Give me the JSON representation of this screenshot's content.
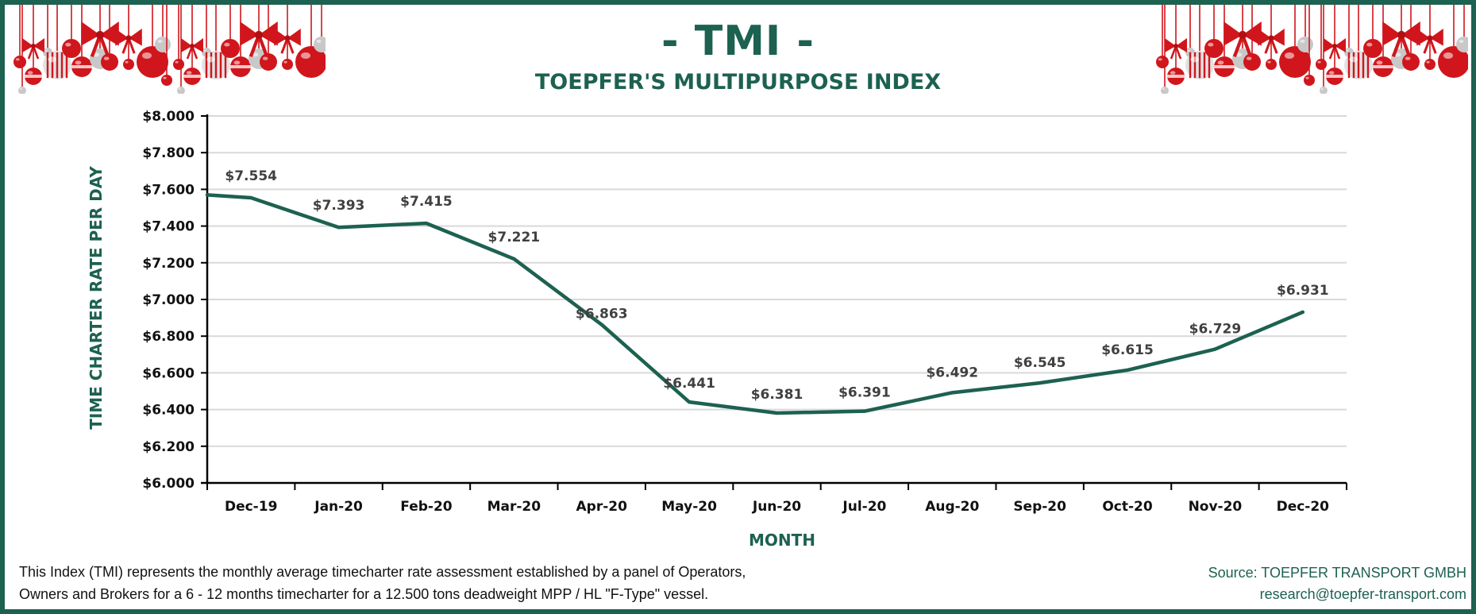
{
  "header": {
    "title": "- TMI -",
    "subtitle": "TOEPFER'S MULTIPURPOSE INDEX"
  },
  "decoration": {
    "left": "christmas-ornaments",
    "right": "christmas-ornaments",
    "colors": {
      "red": "#d0161c",
      "silver": "#c8c8c8",
      "frame": "#1d6150"
    }
  },
  "footer": {
    "note_line1": "This Index (TMI) represents the monthly average timecharter rate assessment established by a panel of Operators,",
    "note_line2": "Owners and Brokers for a 6 - 12 months timecharter for a 12.500 tons deadweight MPP / HL \"F-Type\" vessel.",
    "source_line1": "Source: TOEPFER TRANSPORT GMBH",
    "source_line2": "research@toepfer-transport.com"
  },
  "chart_data": {
    "type": "line",
    "title": "- TMI -",
    "subtitle": "TOEPFER'S MULTIPURPOSE INDEX",
    "xlabel": "MONTH",
    "ylabel": "TIME CHARTER RATE PER DAY",
    "categories": [
      "Dec-19",
      "Jan-20",
      "Feb-20",
      "Mar-20",
      "Apr-20",
      "May-20",
      "Jun-20",
      "Jul-20",
      "Aug-20",
      "Sep-20",
      "Oct-20",
      "Nov-20",
      "Dec-20"
    ],
    "series": [
      {
        "name": "TMI",
        "color": "#1d6150",
        "start_value_at_axis": 7.57,
        "values": [
          7.554,
          7.393,
          7.415,
          7.221,
          6.863,
          6.441,
          6.381,
          6.391,
          6.492,
          6.545,
          6.615,
          6.729,
          6.931
        ],
        "labels": [
          "$7.554",
          "$7.393",
          "$7.415",
          "$7.221",
          "$6.863",
          "$6.441",
          "$6.381",
          "$6.391",
          "$6.492",
          "$6.545",
          "$6.615",
          "$6.729",
          "$6.931"
        ]
      }
    ],
    "ylim": [
      6.0,
      8.0
    ],
    "yticks": [
      6.0,
      6.2,
      6.4,
      6.6,
      6.8,
      7.0,
      7.2,
      7.4,
      7.6,
      7.8,
      8.0
    ],
    "ytick_labels": [
      "$6.000",
      "$6.200",
      "$6.400",
      "$6.600",
      "$6.800",
      "$7.000",
      "$7.200",
      "$7.400",
      "$7.600",
      "$7.800",
      "$8.000"
    ],
    "grid": true,
    "legend": "none"
  }
}
